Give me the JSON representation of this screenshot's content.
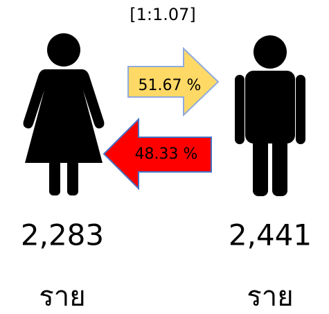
{
  "ratio": "[1:1.07]",
  "female": {
    "count": "2,283",
    "unit": "ราย"
  },
  "male": {
    "count": "2,441",
    "unit": "ราย"
  },
  "arrows": {
    "to_male": "51.67 %",
    "to_female": "48.33 %"
  }
}
